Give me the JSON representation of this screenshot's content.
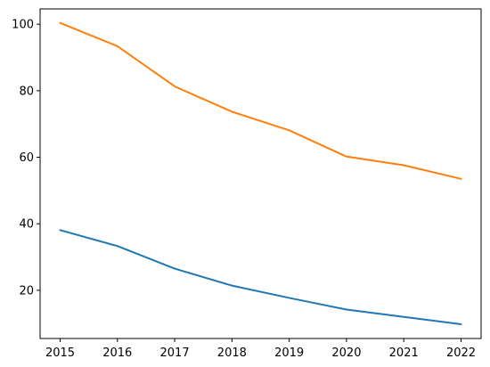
{
  "chart_data": {
    "type": "line",
    "x": [
      2015,
      2016,
      2017,
      2018,
      2019,
      2020,
      2021,
      2022
    ],
    "x_tick_labels": [
      "2015",
      "2016",
      "2017",
      "2018",
      "2019",
      "2020",
      "2021",
      "2022"
    ],
    "y_ticks": [
      20,
      40,
      60,
      80,
      100
    ],
    "y_tick_labels": [
      "20",
      "40",
      "60",
      "80",
      "100"
    ],
    "xlim": [
      2014.65,
      2022.35
    ],
    "ylim": [
      5.5,
      104.6
    ],
    "grid": false,
    "title": "",
    "xlabel": "",
    "ylabel": "",
    "series": [
      {
        "color": "#1f77b4",
        "values": [
          38.1,
          33.3,
          26.5,
          21.4,
          17.7,
          14.2,
          12.0,
          9.8
        ]
      },
      {
        "color": "#ff7f0e",
        "values": [
          100.4,
          93.4,
          81.3,
          73.7,
          68.1,
          60.2,
          57.6,
          53.5
        ]
      }
    ]
  }
}
